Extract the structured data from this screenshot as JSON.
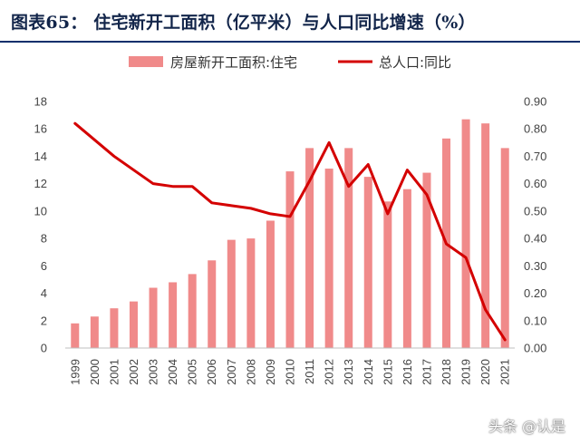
{
  "title": "图表65： 住宅新开工面积（亿平米）与人口同比增速（%）",
  "watermark": "头条 @认是",
  "colors": {
    "bar": "#f08a8a",
    "line": "#d40000",
    "title": "#12254a",
    "rule": "#0d2f6b"
  },
  "chart_data": {
    "type": "bar",
    "categories": [
      "1999",
      "2000",
      "2001",
      "2002",
      "2003",
      "2004",
      "2005",
      "2006",
      "2007",
      "2008",
      "2009",
      "2010",
      "2011",
      "2012",
      "2013",
      "2014",
      "2015",
      "2016",
      "2017",
      "2018",
      "2019",
      "2020",
      "2021"
    ],
    "series": [
      {
        "name": "房屋新开工面积:住宅",
        "type": "bar",
        "axis": "left",
        "values": [
          1.8,
          2.3,
          2.9,
          3.4,
          4.4,
          4.8,
          5.4,
          6.4,
          7.9,
          8.0,
          9.3,
          12.9,
          14.6,
          13.1,
          14.6,
          12.5,
          10.7,
          11.6,
          12.8,
          15.3,
          16.7,
          16.4,
          14.6
        ]
      },
      {
        "name": "总人口:同比",
        "type": "line",
        "axis": "right",
        "values": [
          0.82,
          0.76,
          0.7,
          0.65,
          0.6,
          0.59,
          0.59,
          0.53,
          0.52,
          0.51,
          0.49,
          0.48,
          0.61,
          0.75,
          0.59,
          0.67,
          0.49,
          0.65,
          0.56,
          0.38,
          0.33,
          0.14,
          0.03
        ]
      }
    ],
    "y_left": {
      "range": [
        0,
        18
      ],
      "ticks": [
        "0",
        "2",
        "4",
        "6",
        "8",
        "10",
        "12",
        "14",
        "16",
        "18"
      ]
    },
    "y_right": {
      "range": [
        0,
        0.9
      ],
      "ticks": [
        "0.00",
        "0.10",
        "0.20",
        "0.30",
        "0.40",
        "0.50",
        "0.60",
        "0.70",
        "0.80",
        "0.90"
      ]
    },
    "legend": {
      "position": "top",
      "bar_label": "房屋新开工面积:住宅",
      "line_label": "总人口:同比"
    },
    "grid": false
  }
}
